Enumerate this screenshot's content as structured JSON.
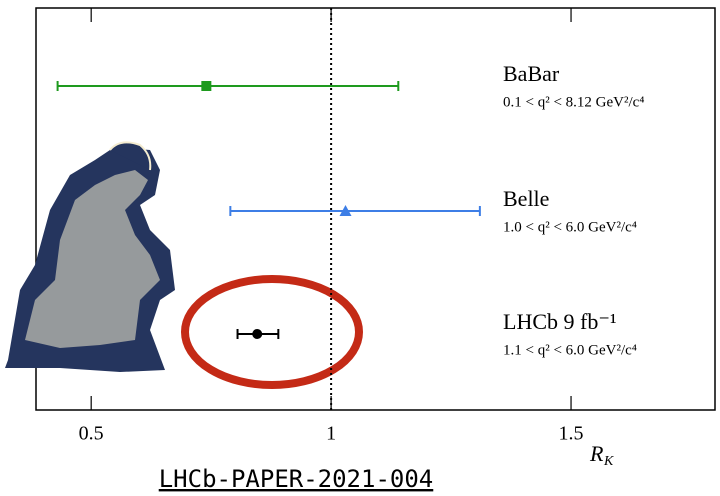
{
  "chart_data": {
    "type": "errorbar",
    "xlabel": "R",
    "xlabel_sub": "K",
    "xlim": [
      0.385,
      1.8
    ],
    "xticks": [
      0.5,
      1,
      1.5
    ],
    "reference_line": 1,
    "series": [
      {
        "name": "BaBar",
        "range": "0.1 < q² < 8.12 GeV²/c⁴",
        "color": "#1e9a1e",
        "marker": "square",
        "value": 0.74,
        "err_minus": 0.31,
        "err_plus": 0.4
      },
      {
        "name": "Belle",
        "range": "1.0 < q² < 6.0 GeV²/c⁴",
        "color": "#3d7ee6",
        "marker": "triangle",
        "value": 1.03,
        "err_minus": 0.24,
        "err_plus": 0.28
      },
      {
        "name": "LHCb 9 fb⁻¹",
        "range": "1.1 < q² < 6.0 GeV²/c⁴",
        "color": "#000000",
        "marker": "circle",
        "value": 0.846,
        "err_minus": 0.041,
        "err_plus": 0.044
      }
    ],
    "caption": "LHCb-PAPER-2021-004"
  }
}
